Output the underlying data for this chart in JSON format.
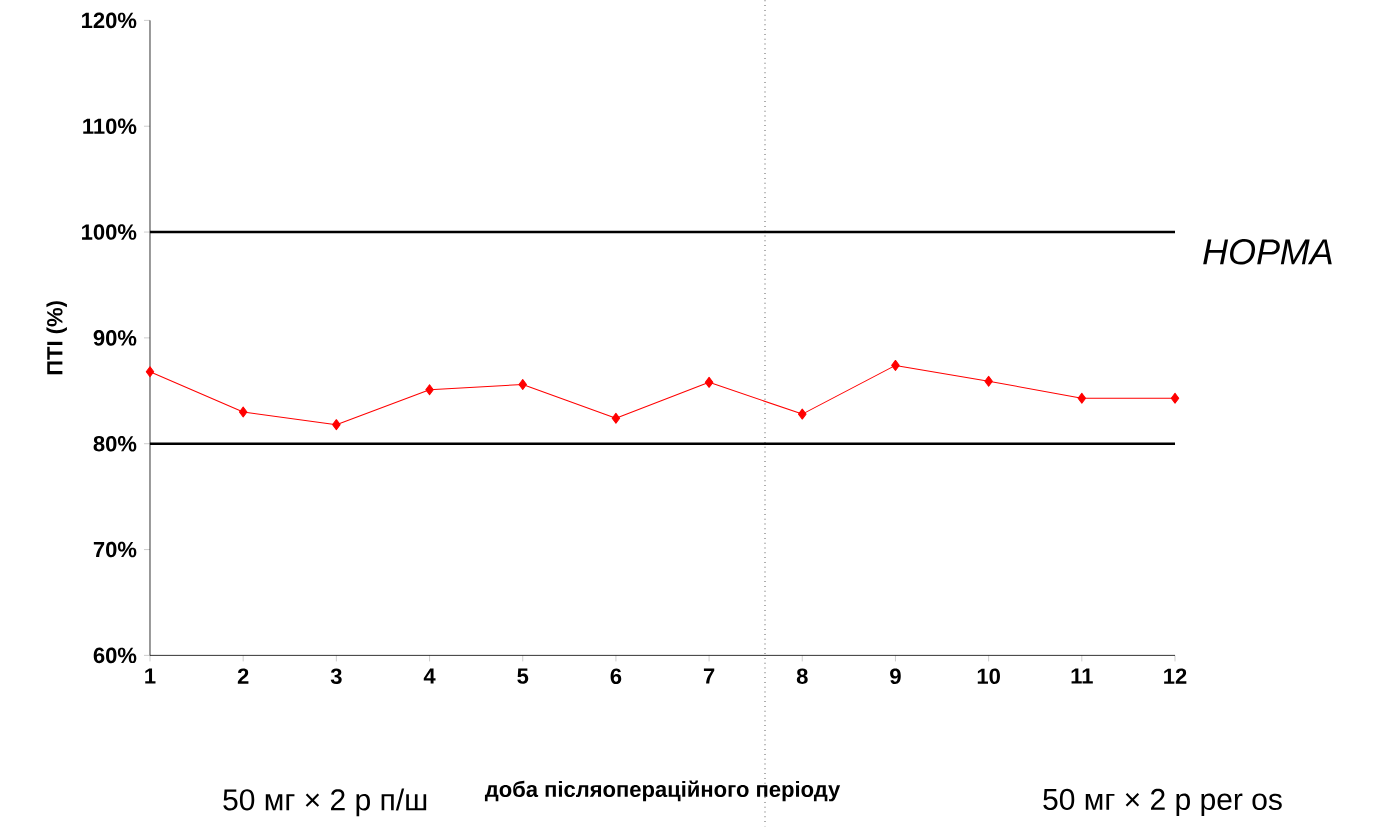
{
  "chart_data": {
    "type": "line",
    "xlabel": "доба післяопераційного періоду",
    "ylabel": "ПТІ (%)",
    "x": [
      1,
      2,
      3,
      4,
      5,
      6,
      7,
      8,
      9,
      10,
      11,
      12
    ],
    "series": [
      {
        "color": "#ff0000",
        "values": [
          86.8,
          83.0,
          81.8,
          85.1,
          85.6,
          82.4,
          85.8,
          82.8,
          87.4,
          85.9,
          84.3,
          84.3
        ]
      }
    ],
    "xlim": [
      1,
      12
    ],
    "xticks": [
      1,
      2,
      3,
      4,
      5,
      6,
      7,
      8,
      9,
      10,
      11,
      12
    ],
    "ylim": [
      60,
      120
    ],
    "yticks": [
      {
        "value": 60,
        "label": "60%"
      },
      {
        "value": 70,
        "label": "70%"
      },
      {
        "value": 80,
        "label": "80%"
      },
      {
        "value": 90,
        "label": "90%"
      },
      {
        "value": 100,
        "label": "100%"
      },
      {
        "value": 110,
        "label": "110%"
      },
      {
        "value": 120,
        "label": "120%"
      }
    ],
    "ref_lines": [
      {
        "axis": "y",
        "value": 100,
        "label": "НОРМА",
        "color": "#000000"
      },
      {
        "axis": "y",
        "value": 80,
        "color": "#000000"
      },
      {
        "axis": "x",
        "value": 7.6,
        "color": "#000000",
        "line_style": "dotted"
      }
    ],
    "annotations": [
      "50 мг × 2 р п/ш",
      "50 мг × 2 р per os"
    ],
    "marker": "diamond",
    "line_style": "solid",
    "grid": false
  }
}
